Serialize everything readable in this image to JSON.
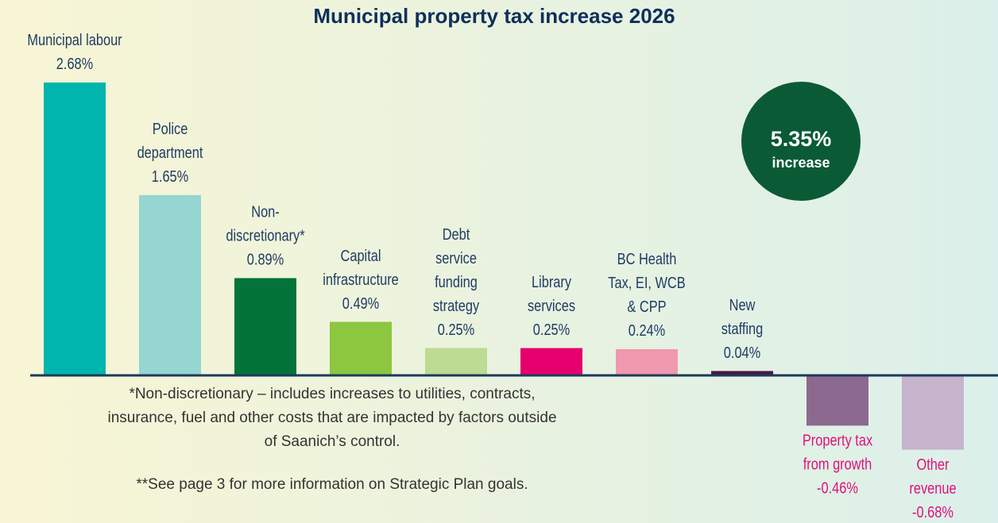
{
  "chart_data": {
    "type": "bar",
    "title": "Municipal property tax increase 2026",
    "categories": [
      [
        "Municipal labour"
      ],
      [
        "Police",
        "department"
      ],
      [
        "Non-",
        "discretionary*"
      ],
      [
        "Capital",
        "infrastructure"
      ],
      [
        "Debt",
        "service",
        "funding",
        "strategy"
      ],
      [
        "Library",
        "services"
      ],
      [
        "BC Health",
        "Tax, EI, WCB",
        "& CPP"
      ],
      [
        "New",
        "staffing"
      ],
      [
        "Property tax",
        "from growth"
      ],
      [
        "Other",
        "revenue"
      ]
    ],
    "values": [
      2.68,
      1.65,
      0.89,
      0.49,
      0.25,
      0.25,
      0.24,
      0.04,
      -0.46,
      -0.68
    ],
    "value_labels": [
      "2.68%",
      "1.65%",
      "0.89%",
      "0.49%",
      "0.25%",
      "0.25%",
      "0.24%",
      "0.04%",
      "-0.46%",
      "-0.68%"
    ],
    "colors": [
      "#00b5ad",
      "#95d5d2",
      "#047339",
      "#8dc63f",
      "#bddb91",
      "#e5006e",
      "#f098ae",
      "#4a1642",
      "#8c6a8f",
      "#c6b3cc"
    ],
    "total_label": "5.35%",
    "total_text": "increase",
    "notes": [
      [
        "*Non-discretionary – includes increases to utilities, contracts,",
        "insurance, fuel and other costs that are impacted by factors outside",
        "of Saanich’s control."
      ],
      [
        "**See page 3 for more information on Strategic Plan goals."
      ]
    ]
  }
}
